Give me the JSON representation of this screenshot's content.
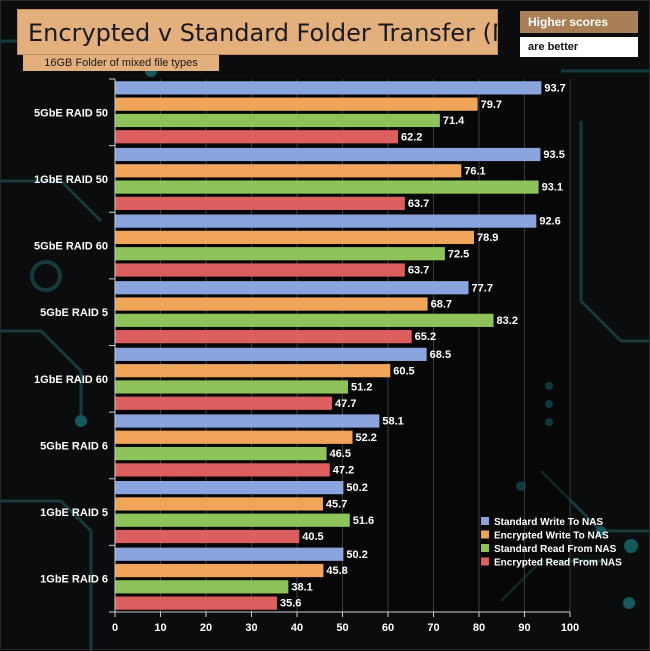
{
  "title": "Encrypted v Standard Folder Transfer (MB/s)",
  "subtitle": "16GB Folder of mixed file types",
  "notes": {
    "line1": "Higher scores",
    "line2": "are better"
  },
  "colors": {
    "standard_write": "#8aa4de",
    "encrypted_write": "#f0a55a",
    "standard_read": "#8dc35a",
    "encrypted_read": "#dc5e5e"
  },
  "chart_data": {
    "type": "bar",
    "orientation": "horizontal",
    "categories": [
      "5GbE RAID 50",
      "1GbE RAID 50",
      "5GbE RAID 60",
      "5GbE RAID 5",
      "1GbE RAID 60",
      "5GbE RAID 6",
      "1GbE RAID 5",
      "1GbE RAID 6"
    ],
    "series": [
      {
        "name": "Standard Write To NAS",
        "color": "#8aa4de",
        "values": [
          93.7,
          93.5,
          92.6,
          77.7,
          68.5,
          58.1,
          50.2,
          50.2
        ]
      },
      {
        "name": "Encrypted Write To NAS",
        "color": "#f0a55a",
        "values": [
          79.7,
          76.1,
          78.9,
          68.7,
          60.5,
          52.2,
          45.7,
          45.8
        ]
      },
      {
        "name": "Standard Read From NAS",
        "color": "#8dc35a",
        "values": [
          71.4,
          93.1,
          72.5,
          83.2,
          51.2,
          46.5,
          51.6,
          38.1
        ]
      },
      {
        "name": "Encrypted Read From NAS",
        "color": "#dc5e5e",
        "values": [
          62.2,
          63.7,
          63.7,
          65.2,
          47.7,
          47.2,
          40.5,
          35.6
        ]
      }
    ],
    "xlim": [
      0,
      100
    ],
    "xticks": [
      0,
      10,
      20,
      30,
      40,
      50,
      60,
      70,
      80,
      90,
      100
    ],
    "grid": true,
    "legend_position": "bottom-right"
  }
}
